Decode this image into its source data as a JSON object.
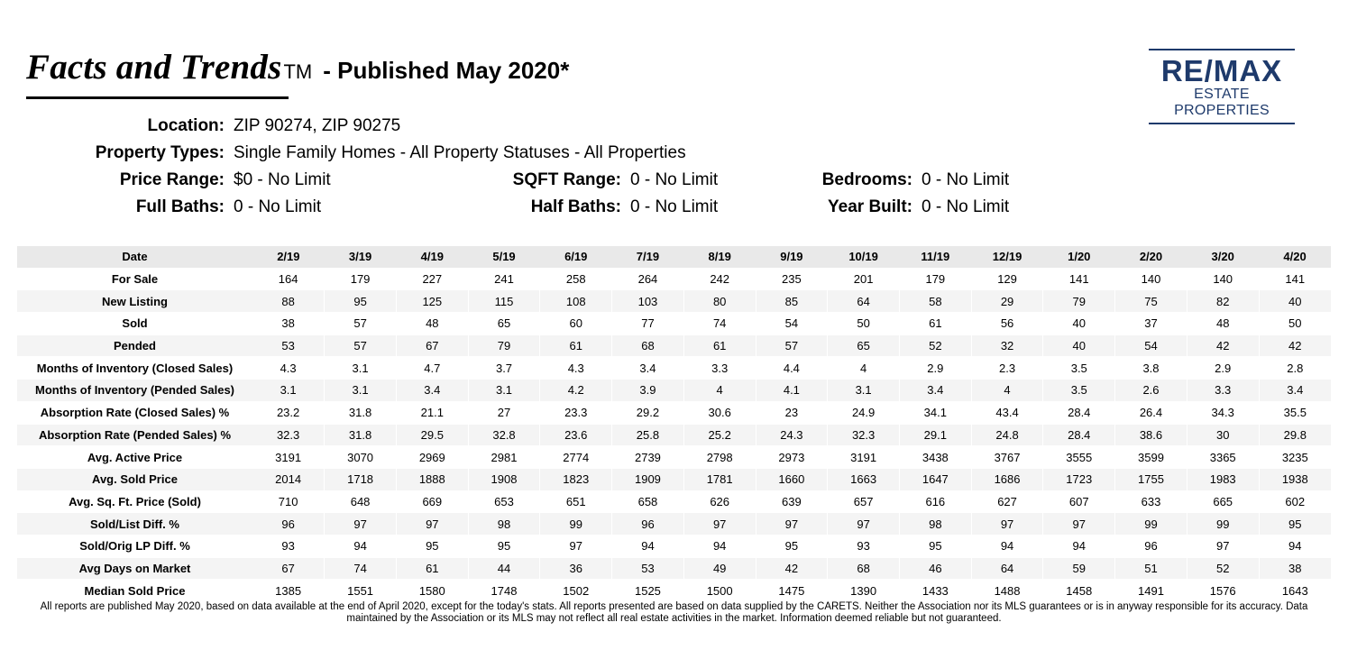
{
  "header": {
    "title": "Facts and Trends",
    "trademark": "TM",
    "subtitle": "- Published May 2020*"
  },
  "logo": {
    "wordmark": "RE/MAX",
    "subtext": "ESTATE PROPERTIES",
    "brand_color": "#1e3a6b"
  },
  "filters": {
    "location": {
      "label": "Location:",
      "value": "ZIP 90274, ZIP 90275"
    },
    "property_types": {
      "label": "Property Types:",
      "value": "Single Family Homes - All Property Statuses - All Properties"
    },
    "price_range": {
      "label": "Price Range:",
      "value": "$0 - No Limit"
    },
    "sqft_range": {
      "label": "SQFT Range:",
      "value": "0 - No Limit"
    },
    "bedrooms": {
      "label": "Bedrooms:",
      "value": "0 - No Limit"
    },
    "full_baths": {
      "label": "Full Baths:",
      "value": "0 - No Limit"
    },
    "half_baths": {
      "label": "Half Baths:",
      "value": "0 - No Limit"
    },
    "year_built": {
      "label": "Year Built:",
      "value": "0 - No Limit"
    }
  },
  "table": {
    "header_label": "Date",
    "columns": [
      "2/19",
      "3/19",
      "4/19",
      "5/19",
      "6/19",
      "7/19",
      "8/19",
      "9/19",
      "10/19",
      "11/19",
      "12/19",
      "1/20",
      "2/20",
      "3/20",
      "4/20"
    ],
    "rows": [
      {
        "label": "For Sale",
        "values": [
          "164",
          "179",
          "227",
          "241",
          "258",
          "264",
          "242",
          "235",
          "201",
          "179",
          "129",
          "141",
          "140",
          "140",
          "141"
        ]
      },
      {
        "label": "New Listing",
        "values": [
          "88",
          "95",
          "125",
          "115",
          "108",
          "103",
          "80",
          "85",
          "64",
          "58",
          "29",
          "79",
          "75",
          "82",
          "40"
        ]
      },
      {
        "label": "Sold",
        "values": [
          "38",
          "57",
          "48",
          "65",
          "60",
          "77",
          "74",
          "54",
          "50",
          "61",
          "56",
          "40",
          "37",
          "48",
          "50"
        ]
      },
      {
        "label": "Pended",
        "values": [
          "53",
          "57",
          "67",
          "79",
          "61",
          "68",
          "61",
          "57",
          "65",
          "52",
          "32",
          "40",
          "54",
          "42",
          "42"
        ]
      },
      {
        "label": "Months of Inventory (Closed Sales)",
        "values": [
          "4.3",
          "3.1",
          "4.7",
          "3.7",
          "4.3",
          "3.4",
          "3.3",
          "4.4",
          "4",
          "2.9",
          "2.3",
          "3.5",
          "3.8",
          "2.9",
          "2.8"
        ]
      },
      {
        "label": "Months of Inventory (Pended Sales)",
        "values": [
          "3.1",
          "3.1",
          "3.4",
          "3.1",
          "4.2",
          "3.9",
          "4",
          "4.1",
          "3.1",
          "3.4",
          "4",
          "3.5",
          "2.6",
          "3.3",
          "3.4"
        ]
      },
      {
        "label": "Absorption Rate (Closed Sales) %",
        "values": [
          "23.2",
          "31.8",
          "21.1",
          "27",
          "23.3",
          "29.2",
          "30.6",
          "23",
          "24.9",
          "34.1",
          "43.4",
          "28.4",
          "26.4",
          "34.3",
          "35.5"
        ]
      },
      {
        "label": "Absorption Rate (Pended Sales) %",
        "values": [
          "32.3",
          "31.8",
          "29.5",
          "32.8",
          "23.6",
          "25.8",
          "25.2",
          "24.3",
          "32.3",
          "29.1",
          "24.8",
          "28.4",
          "38.6",
          "30",
          "29.8"
        ]
      },
      {
        "label": "Avg. Active Price",
        "values": [
          "3191",
          "3070",
          "2969",
          "2981",
          "2774",
          "2739",
          "2798",
          "2973",
          "3191",
          "3438",
          "3767",
          "3555",
          "3599",
          "3365",
          "3235"
        ]
      },
      {
        "label": "Avg. Sold Price",
        "values": [
          "2014",
          "1718",
          "1888",
          "1908",
          "1823",
          "1909",
          "1781",
          "1660",
          "1663",
          "1647",
          "1686",
          "1723",
          "1755",
          "1983",
          "1938"
        ]
      },
      {
        "label": "Avg. Sq. Ft. Price (Sold)",
        "values": [
          "710",
          "648",
          "669",
          "653",
          "651",
          "658",
          "626",
          "639",
          "657",
          "616",
          "627",
          "607",
          "633",
          "665",
          "602"
        ]
      },
      {
        "label": "Sold/List Diff. %",
        "values": [
          "96",
          "97",
          "97",
          "98",
          "99",
          "96",
          "97",
          "97",
          "97",
          "98",
          "97",
          "97",
          "99",
          "99",
          "95"
        ]
      },
      {
        "label": "Sold/Orig LP Diff. %",
        "values": [
          "93",
          "94",
          "95",
          "95",
          "97",
          "94",
          "94",
          "95",
          "93",
          "95",
          "94",
          "94",
          "96",
          "97",
          "94"
        ]
      },
      {
        "label": "Avg Days on Market",
        "values": [
          "67",
          "74",
          "61",
          "44",
          "36",
          "53",
          "49",
          "42",
          "68",
          "46",
          "64",
          "59",
          "51",
          "52",
          "38"
        ]
      },
      {
        "label": "Median Sold Price",
        "values": [
          "1385",
          "1551",
          "1580",
          "1748",
          "1502",
          "1525",
          "1500",
          "1475",
          "1390",
          "1433",
          "1488",
          "1458",
          "1491",
          "1576",
          "1643"
        ]
      }
    ]
  },
  "footer": {
    "disclaimer": "All reports are published May 2020, based on data available at the end of April 2020, except for the today's stats. All reports presented are based on data supplied by the CARETS. Neither the Association nor its MLS guarantees or is in anyway responsible for its accuracy. Data maintained by the Association or its MLS may not reflect all real estate activities in the market. Information deemed reliable but not guaranteed."
  }
}
